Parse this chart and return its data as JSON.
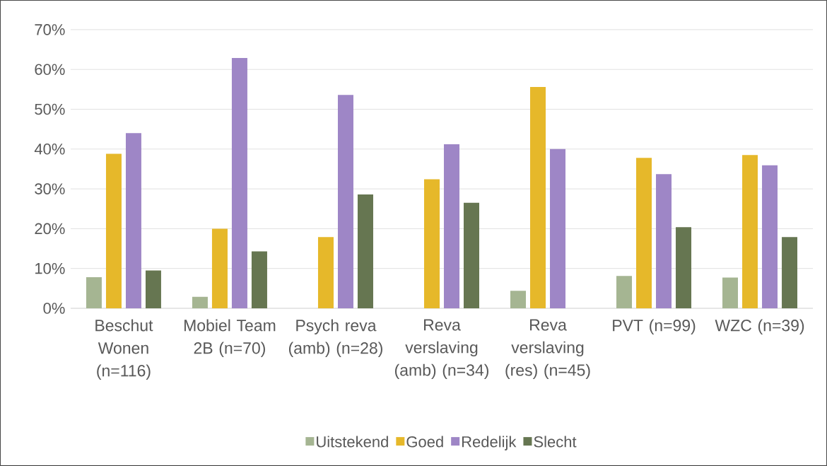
{
  "chart_data": {
    "type": "bar",
    "categories": [
      "Beschut Wonen (n=116)",
      "Mobiel Team 2B (n=70)",
      "Psych reva (amb) (n=28)",
      "Reva verslaving (amb) (n=34)",
      "Reva verslaving (res) (n=45)",
      "PVT (n=99)",
      "WZC (n=39)"
    ],
    "series": [
      {
        "name": "Uitstekend",
        "color": "#a5b592",
        "values": [
          7.8,
          2.9,
          0,
          0,
          4.4,
          8.1,
          7.7
        ]
      },
      {
        "name": "Goed",
        "color": "#e6b82a",
        "values": [
          38.8,
          20.0,
          17.9,
          32.4,
          55.6,
          37.8,
          38.5
        ]
      },
      {
        "name": "Redelijk",
        "color": "#9e86c6",
        "values": [
          44.0,
          62.9,
          53.6,
          41.2,
          40.0,
          33.7,
          35.9
        ]
      },
      {
        "name": "Slecht",
        "color": "#667651",
        "values": [
          9.5,
          14.3,
          28.6,
          26.5,
          0,
          20.4,
          17.9
        ]
      }
    ],
    "ylim": [
      0,
      70
    ],
    "yticks": [
      {
        "value": 0,
        "label": "0%"
      },
      {
        "value": 10,
        "label": "10%"
      },
      {
        "value": 20,
        "label": "20%"
      },
      {
        "value": 30,
        "label": "30%"
      },
      {
        "value": 40,
        "label": "40%"
      },
      {
        "value": 50,
        "label": "50%"
      },
      {
        "value": 60,
        "label": "60%"
      },
      {
        "value": 70,
        "label": "70%"
      }
    ],
    "grid": "y",
    "legend": "bottom"
  }
}
